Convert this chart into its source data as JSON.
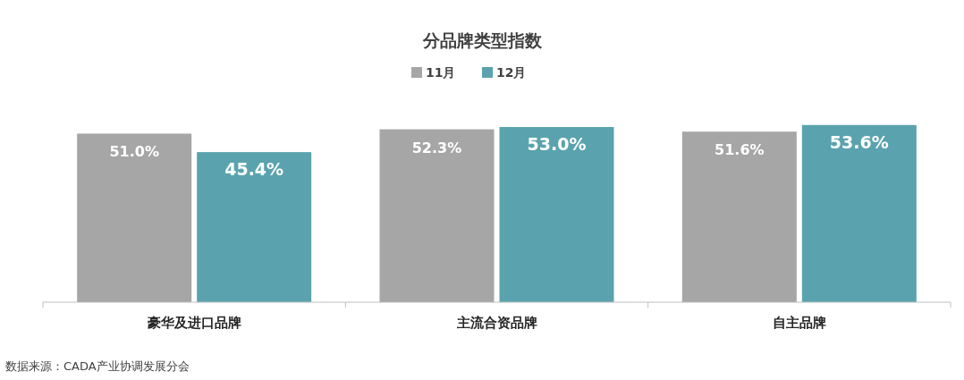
{
  "chart_data": {
    "type": "bar",
    "title": "分品牌类型指数",
    "categories": [
      "豪华及进口品牌",
      "主流合资品牌",
      "自主品牌"
    ],
    "series": [
      {
        "name": "11月",
        "color": "#a6a6a6",
        "values": [
          51.0,
          52.3,
          51.6
        ],
        "value_labels": [
          "51.0%",
          "52.3%",
          "51.6%"
        ]
      },
      {
        "name": "12月",
        "color": "#5aa3ae",
        "values": [
          45.4,
          53.0,
          53.6
        ],
        "value_labels": [
          "45.4%",
          "53.0%",
          "53.6%"
        ]
      }
    ],
    "legend": "top",
    "annotations": [
      "数据来源：CADA产业协调发展分会"
    ]
  }
}
